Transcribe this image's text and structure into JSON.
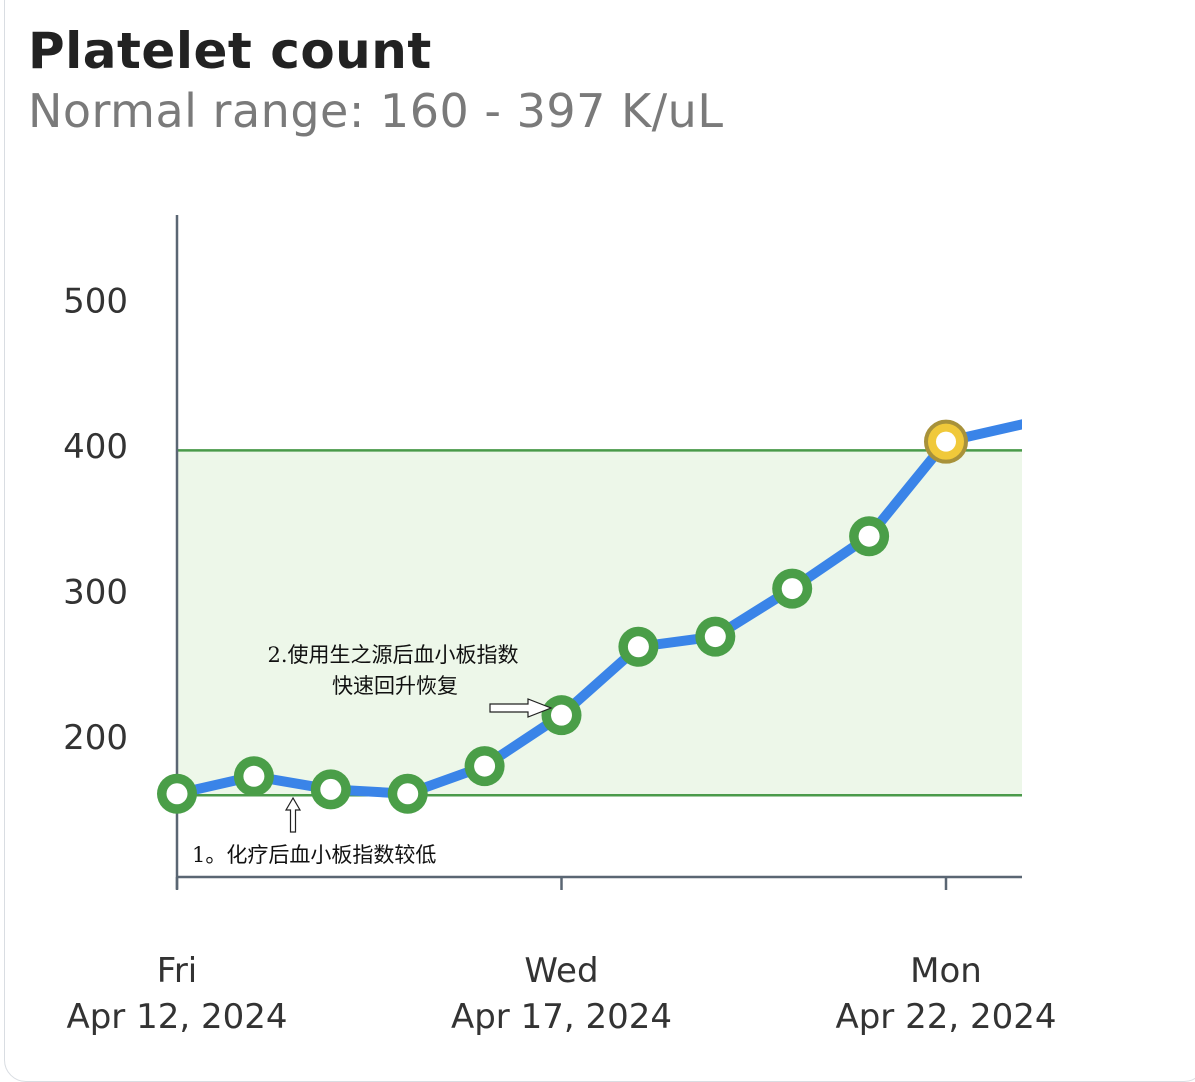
{
  "header": {
    "title": "Platelet count",
    "subtitle": "Normal range: 160 - 397 K/uL"
  },
  "colors": {
    "line": "#3a84e8",
    "normal_band_fill": "#edf7e9",
    "normal_band_border": "#4a9a4a",
    "marker_normal": "#4a9e48",
    "marker_high_fill": "#f0c93a",
    "marker_high_ring": "#a8923a",
    "axis": "#5a6673"
  },
  "chart_data": {
    "type": "line",
    "y_ticks": [
      200,
      300,
      400,
      500
    ],
    "ylim": [
      120,
      550
    ],
    "normal_range": [
      160,
      397
    ],
    "x_ticks": [
      {
        "date": "2024-04-12",
        "day": "Fri",
        "label": "Apr 12, 2024"
      },
      {
        "date": "2024-04-17",
        "day": "Wed",
        "label": "Apr 17, 2024"
      },
      {
        "date": "2024-04-22",
        "day": "Mon",
        "label": "Apr 22, 2024"
      }
    ],
    "xlim": [
      "2024-04-12",
      "2024-04-23"
    ],
    "points": [
      {
        "date": "2024-04-12",
        "value": 161,
        "status": "normal"
      },
      {
        "date": "2024-04-13",
        "value": 173,
        "status": "normal"
      },
      {
        "date": "2024-04-14",
        "value": 164,
        "status": "normal"
      },
      {
        "date": "2024-04-15",
        "value": 161,
        "status": "normal"
      },
      {
        "date": "2024-04-16",
        "value": 180,
        "status": "normal"
      },
      {
        "date": "2024-04-17",
        "value": 215,
        "status": "normal"
      },
      {
        "date": "2024-04-18",
        "value": 262,
        "status": "normal"
      },
      {
        "date": "2024-04-19",
        "value": 269,
        "status": "normal"
      },
      {
        "date": "2024-04-20",
        "value": 302,
        "status": "normal"
      },
      {
        "date": "2024-04-21",
        "value": 338,
        "status": "normal"
      },
      {
        "date": "2024-04-22",
        "value": 403,
        "status": "high"
      }
    ],
    "annotations": [
      {
        "lines": [
          "1。化疗后血小板指数较低"
        ]
      },
      {
        "lines": [
          "2.使用生之源后血小板指数",
          "快速回升恢复"
        ]
      }
    ]
  }
}
